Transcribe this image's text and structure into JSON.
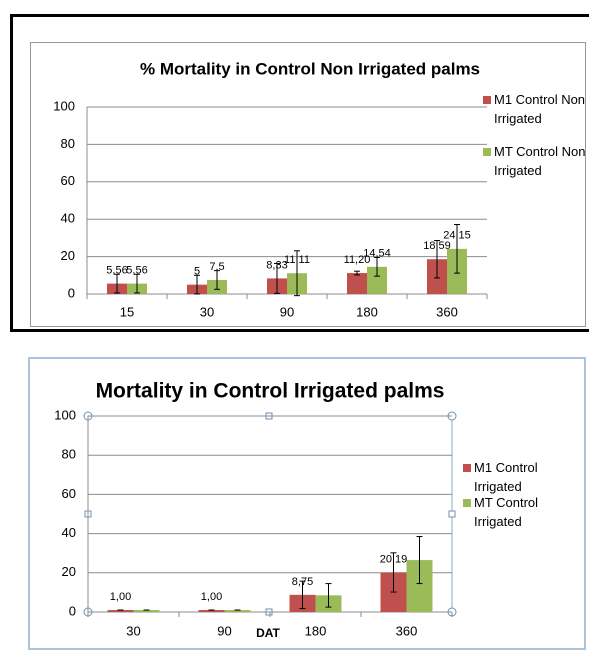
{
  "chart_data": [
    {
      "type": "bar",
      "title": "% Mortality in Control Non Irrigated palms",
      "categories": [
        "15",
        "30",
        "90",
        "180",
        "360"
      ],
      "series": [
        {
          "name": "M1 Control Non  Irrigated",
          "color": "#c0504d",
          "values": [
            5.56,
            5,
            8.33,
            11.2,
            18.59
          ],
          "errors": [
            5,
            5,
            8,
            1,
            10
          ],
          "value_labels": [
            "5,56",
            "5",
            "8,33",
            "11,20",
            "18,59"
          ]
        },
        {
          "name": "MT Control Non Irrigated",
          "color": "#9bbb59",
          "values": [
            5.56,
            7.5,
            11.11,
            14.54,
            24.15
          ],
          "errors": [
            5,
            5,
            12,
            5,
            13
          ],
          "value_labels": [
            "5,56",
            "7,5",
            "11,11",
            "14,54",
            "24,15"
          ]
        }
      ],
      "ylim": [
        0,
        100
      ],
      "yticks": [
        0,
        20,
        40,
        60,
        80,
        100
      ],
      "grid": true,
      "legend": "right"
    },
    {
      "type": "bar",
      "title": "Mortality in Control Irrigated palms",
      "x_label": "DAT",
      "categories": [
        "30",
        "90",
        "180",
        "360"
      ],
      "series": [
        {
          "name": "M1 Control Irrigated",
          "color": "#c0504d",
          "values": [
            1,
            1,
            8.75,
            20.19
          ],
          "errors": [
            0,
            0,
            7,
            10
          ],
          "value_labels": [
            "1,00",
            "1,00",
            "8,75",
            "20,19"
          ]
        },
        {
          "name": "MT Control Irrigated",
          "color": "#9bbb59",
          "values": [
            1,
            1,
            8.5,
            26.5
          ],
          "errors": [
            0,
            0,
            6,
            12
          ]
        }
      ],
      "ylim": [
        0,
        100
      ],
      "yticks": [
        0,
        20,
        40,
        60,
        80,
        100
      ],
      "grid": true,
      "legend": "right"
    }
  ]
}
